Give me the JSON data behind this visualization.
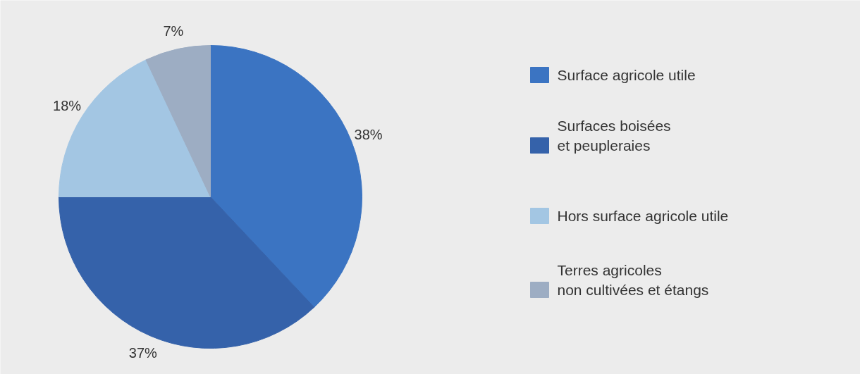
{
  "chart_data": {
    "type": "pie",
    "categories": [
      "Surface agricole utile",
      "Surfaces boisées\net peupleraies",
      "Hors surface agricole utile",
      "Terres agricoles\nnon cultivées et étangs"
    ],
    "values": [
      38,
      37,
      18,
      7
    ],
    "value_labels": [
      "38%",
      "37%",
      "18%",
      "7%"
    ],
    "colors": [
      "#3b74c2",
      "#3562aa",
      "#a3c6e3",
      "#9dadc3"
    ],
    "legend": "right"
  }
}
